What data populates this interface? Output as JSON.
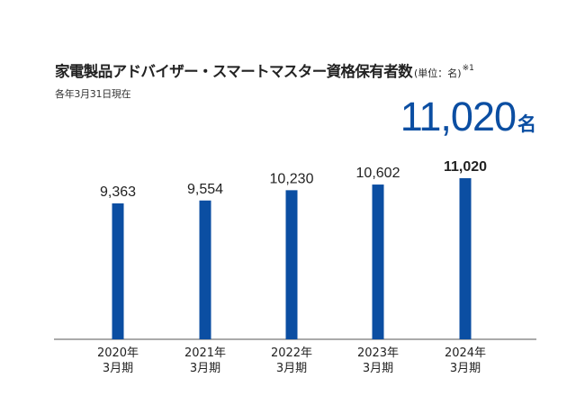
{
  "header": {
    "title": "家電製品アドバイザー・スマートマスター資格保有者数",
    "unit": "(単位：名)",
    "note": "※1",
    "subtitle": "各年3月31日現在"
  },
  "headline": {
    "value": "11,020",
    "suffix": "名"
  },
  "chart_data": {
    "type": "bar",
    "title": "家電製品アドバイザー・スマートマスター資格保有者数",
    "unit": "名",
    "categories": [
      {
        "year": "2020年",
        "month": "3月期"
      },
      {
        "year": "2021年",
        "month": "3月期"
      },
      {
        "year": "2022年",
        "month": "3月期"
      },
      {
        "year": "2023年",
        "month": "3月期"
      },
      {
        "year": "2024年",
        "month": "3月期"
      }
    ],
    "values": [
      9363,
      9554,
      10230,
      10602,
      11020
    ],
    "value_labels": [
      "9,363",
      "9,554",
      "10,230",
      "10,602",
      "11,020"
    ],
    "bar_color": "#0b4ea2",
    "highlight_last": true,
    "grid": false,
    "legend": "none"
  }
}
